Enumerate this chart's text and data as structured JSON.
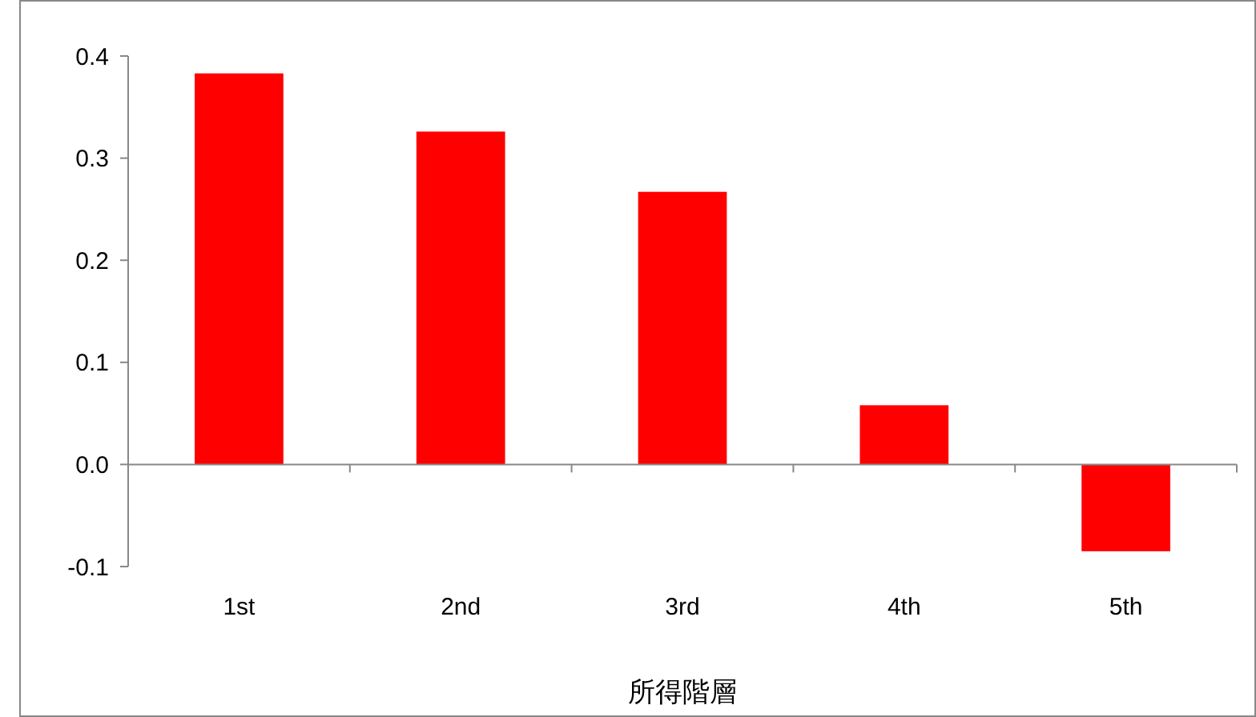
{
  "chart_data": {
    "type": "bar",
    "xlabel": "所得階層",
    "categories": [
      "1st",
      "2nd",
      "3rd",
      "4th",
      "5th"
    ],
    "values": [
      0.383,
      0.326,
      0.267,
      0.058,
      -0.085
    ],
    "color": "#ff0000",
    "ylim": [
      -0.1,
      0.4
    ],
    "yticks": [
      -0.1,
      {
        "value": 0,
        "label": "0.0"
      },
      0.1,
      0.2,
      0.3,
      0.4
    ]
  }
}
